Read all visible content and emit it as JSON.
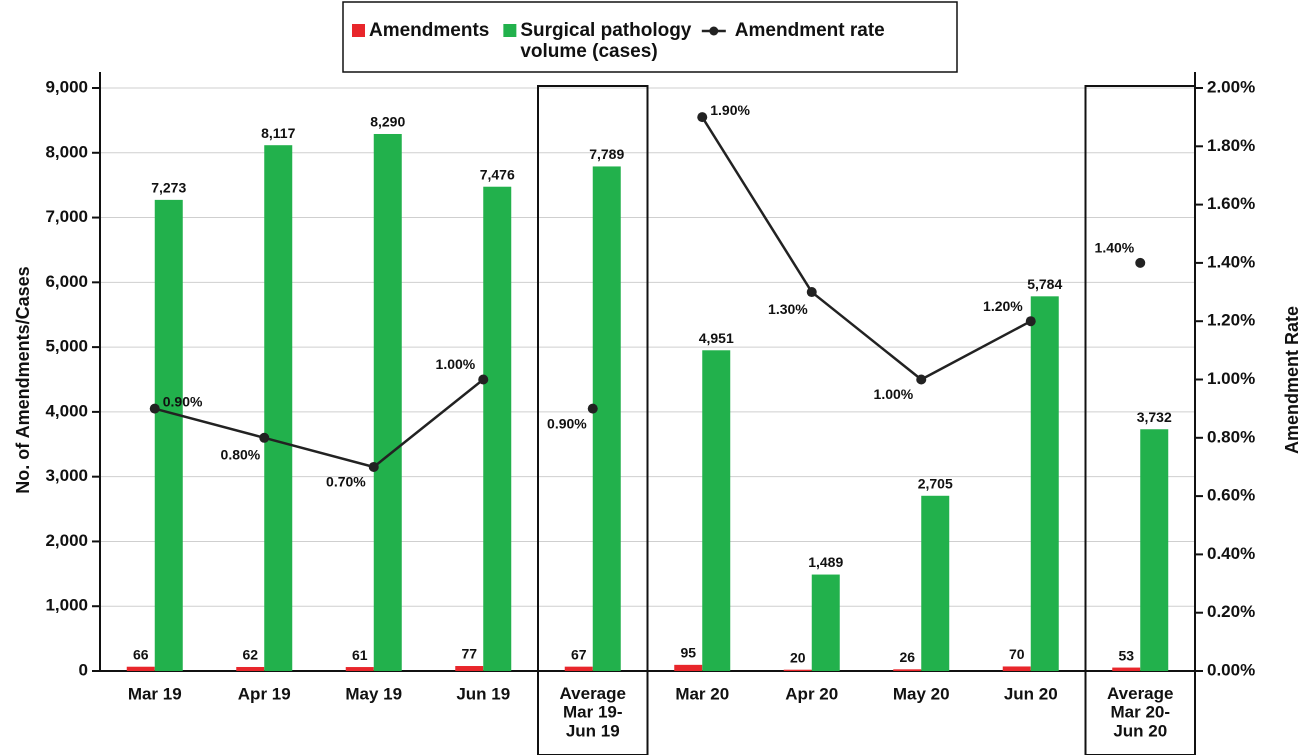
{
  "chart_data": {
    "type": "bar",
    "categories": [
      "Mar 19",
      "Apr 19",
      "May 19",
      "Jun 19",
      "Average\nMar 19-\nJun 19",
      "Mar 20",
      "Apr 20",
      "May 20",
      "Jun 20",
      "Average\nMar 20-\nJun 20"
    ],
    "highlight": [
      4,
      9
    ],
    "ylabel": "No. of Amendments/Cases",
    "y2label": "Amendment Rate",
    "ylim": [
      0,
      9000
    ],
    "yticks": [
      0,
      {
        "value": 1000,
        "label": "1,000"
      },
      {
        "value": 2000,
        "label": "2,000"
      },
      {
        "value": 3000,
        "label": "3,000"
      },
      {
        "value": 4000,
        "label": "4,000"
      },
      {
        "value": 5000,
        "label": "5,000"
      },
      {
        "value": 6000,
        "label": "6,000"
      },
      {
        "value": 7000,
        "label": "7,000"
      },
      {
        "value": 8000,
        "label": "8,000"
      },
      {
        "value": 9000,
        "label": "9,000"
      }
    ],
    "y2lim": [
      0,
      2
    ],
    "y2ticks": [
      {
        "value": 0,
        "label": "0.00%"
      },
      {
        "value": 0.2,
        "label": "0.20%"
      },
      {
        "value": 0.4,
        "label": "0.40%"
      },
      {
        "value": 0.6,
        "label": "0.60%"
      },
      {
        "value": 0.8,
        "label": "0.80%"
      },
      {
        "value": 1.0,
        "label": "1.00%"
      },
      {
        "value": 1.2,
        "label": "1.20%"
      },
      {
        "value": 1.4,
        "label": "1.40%"
      },
      {
        "value": 1.6,
        "label": "1.60%"
      },
      {
        "value": 1.8,
        "label": "1.80%"
      },
      {
        "value": 2.0,
        "label": "2.00%"
      }
    ],
    "grid": true,
    "legend": "top",
    "series": [
      {
        "name": "Amendments",
        "type": "bar",
        "color": "#e8262b",
        "values": [
          66,
          62,
          61,
          77,
          67,
          95,
          20,
          26,
          70,
          53
        ]
      },
      {
        "name": "Surgical pathology\nvolume (cases)",
        "type": "bar",
        "color": "#22b14c",
        "values": [
          7273,
          8117,
          8290,
          7476,
          7789,
          4951,
          1489,
          2705,
          5784,
          3732
        ],
        "value_labels": [
          "7,273",
          "8,117",
          "8,290",
          "7,476",
          "7,789",
          "4,951",
          "1,489",
          "2,705",
          "5,784",
          "3,732"
        ]
      },
      {
        "name": "Amendment rate",
        "type": "line",
        "axis": "y2",
        "color": "#222222",
        "values": [
          0.9,
          0.8,
          0.7,
          1.0,
          null,
          1.9,
          1.3,
          1.0,
          1.2,
          null
        ],
        "value_labels": [
          "0.90%",
          "0.80%",
          "0.70%",
          "1.00%",
          null,
          "1.90%",
          "1.30%",
          "1.00%",
          "1.20%",
          null
        ]
      },
      {
        "type": "line",
        "axis": "y2",
        "color": "#222222",
        "values": [
          null,
          null,
          null,
          null,
          0.9,
          null,
          null,
          null,
          null,
          1.4
        ],
        "value_labels": [
          null,
          null,
          null,
          null,
          "0.90%",
          null,
          null,
          null,
          null,
          "1.40%"
        ]
      }
    ]
  }
}
